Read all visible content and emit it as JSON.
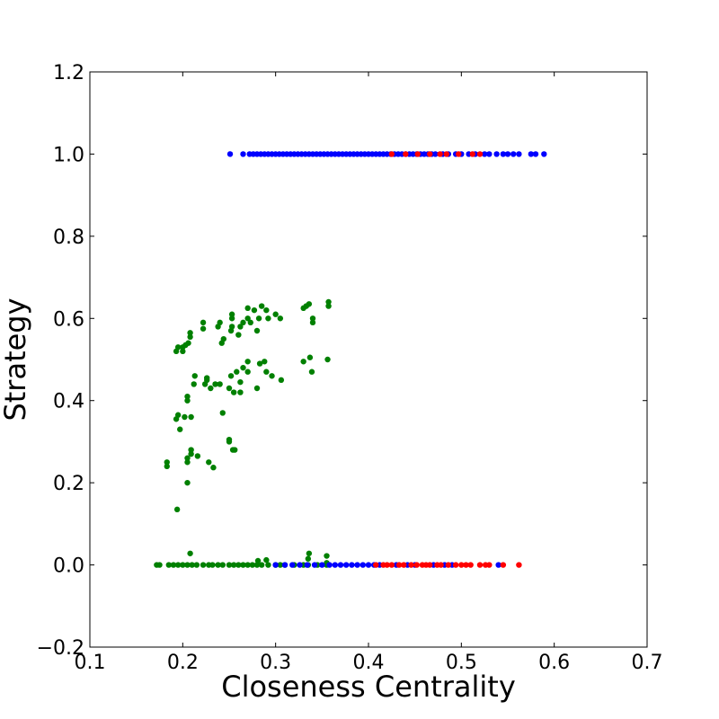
{
  "chart_data": {
    "type": "scatter",
    "title": "",
    "xlabel": "Closeness Centrality",
    "ylabel": "Strategy",
    "xlim": [
      0.1,
      0.7
    ],
    "ylim": [
      -0.2,
      1.2
    ],
    "xticks": [
      "0.1",
      "0.2",
      "0.3",
      "0.4",
      "0.5",
      "0.6",
      "0.7"
    ],
    "yticks": [
      "−0.2",
      "0.0",
      "0.2",
      "0.4",
      "0.6",
      "0.8",
      "1.0",
      "1.2"
    ],
    "xtick_values": [
      0.1,
      0.2,
      0.3,
      0.4,
      0.5,
      0.6,
      0.7
    ],
    "ytick_values": [
      -0.2,
      0.0,
      0.2,
      0.4,
      0.6,
      0.8,
      1.0,
      1.2
    ],
    "grid": false,
    "legend": "none",
    "series": [
      {
        "color": "#008000",
        "points": [
          [
            0.172,
            0
          ],
          [
            0.175,
            0
          ],
          [
            0.185,
            0
          ],
          [
            0.19,
            0
          ],
          [
            0.195,
            0
          ],
          [
            0.2,
            0
          ],
          [
            0.205,
            0
          ],
          [
            0.21,
            0
          ],
          [
            0.215,
            0
          ],
          [
            0.222,
            0
          ],
          [
            0.228,
            0
          ],
          [
            0.232,
            0
          ],
          [
            0.238,
            0
          ],
          [
            0.243,
            0
          ],
          [
            0.25,
            0
          ],
          [
            0.255,
            0
          ],
          [
            0.26,
            0
          ],
          [
            0.265,
            0
          ],
          [
            0.27,
            0
          ],
          [
            0.275,
            0
          ],
          [
            0.28,
            0
          ],
          [
            0.285,
            0
          ],
          [
            0.292,
            0
          ],
          [
            0.3,
            0
          ],
          [
            0.305,
            0
          ],
          [
            0.31,
            0
          ],
          [
            0.32,
            0
          ],
          [
            0.33,
            0
          ],
          [
            0.335,
            0
          ],
          [
            0.345,
            0
          ],
          [
            0.355,
            0
          ],
          [
            0.208,
            0.028
          ],
          [
            0.29,
            0.012
          ],
          [
            0.336,
            0.028
          ],
          [
            0.335,
            0.015
          ],
          [
            0.355,
            0.022
          ],
          [
            0.355,
            0.005
          ],
          [
            0.281,
            0.01
          ],
          [
            0.194,
            0.135
          ],
          [
            0.205,
            0.2
          ],
          [
            0.183,
            0.24
          ],
          [
            0.183,
            0.25
          ],
          [
            0.205,
            0.25
          ],
          [
            0.205,
            0.26
          ],
          [
            0.209,
            0.27
          ],
          [
            0.209,
            0.28
          ],
          [
            0.216,
            0.265
          ],
          [
            0.228,
            0.25
          ],
          [
            0.233,
            0.237
          ],
          [
            0.254,
            0.28
          ],
          [
            0.256,
            0.28
          ],
          [
            0.25,
            0.3
          ],
          [
            0.25,
            0.305
          ],
          [
            0.193,
            0.355
          ],
          [
            0.195,
            0.365
          ],
          [
            0.197,
            0.33
          ],
          [
            0.202,
            0.36
          ],
          [
            0.209,
            0.36
          ],
          [
            0.205,
            0.4
          ],
          [
            0.205,
            0.41
          ],
          [
            0.243,
            0.37
          ],
          [
            0.212,
            0.44
          ],
          [
            0.213,
            0.46
          ],
          [
            0.224,
            0.44
          ],
          [
            0.226,
            0.45
          ],
          [
            0.226,
            0.455
          ],
          [
            0.23,
            0.43
          ],
          [
            0.235,
            0.44
          ],
          [
            0.24,
            0.44
          ],
          [
            0.25,
            0.43
          ],
          [
            0.255,
            0.42
          ],
          [
            0.262,
            0.42
          ],
          [
            0.28,
            0.43
          ],
          [
            0.252,
            0.46
          ],
          [
            0.258,
            0.47
          ],
          [
            0.262,
            0.445
          ],
          [
            0.265,
            0.48
          ],
          [
            0.27,
            0.47
          ],
          [
            0.27,
            0.495
          ],
          [
            0.283,
            0.49
          ],
          [
            0.288,
            0.495
          ],
          [
            0.29,
            0.47
          ],
          [
            0.296,
            0.46
          ],
          [
            0.306,
            0.45
          ],
          [
            0.33,
            0.495
          ],
          [
            0.337,
            0.505
          ],
          [
            0.339,
            0.47
          ],
          [
            0.356,
            0.5
          ],
          [
            0.193,
            0.52
          ],
          [
            0.195,
            0.53
          ],
          [
            0.2,
            0.52
          ],
          [
            0.2,
            0.53
          ],
          [
            0.203,
            0.535
          ],
          [
            0.206,
            0.54
          ],
          [
            0.208,
            0.555
          ],
          [
            0.208,
            0.565
          ],
          [
            0.222,
            0.575
          ],
          [
            0.222,
            0.59
          ],
          [
            0.238,
            0.58
          ],
          [
            0.24,
            0.59
          ],
          [
            0.242,
            0.54
          ],
          [
            0.244,
            0.55
          ],
          [
            0.252,
            0.57
          ],
          [
            0.253,
            0.58
          ],
          [
            0.253,
            0.6
          ],
          [
            0.253,
            0.61
          ],
          [
            0.26,
            0.56
          ],
          [
            0.262,
            0.58
          ],
          [
            0.265,
            0.59
          ],
          [
            0.27,
            0.6
          ],
          [
            0.27,
            0.625
          ],
          [
            0.273,
            0.59
          ],
          [
            0.277,
            0.62
          ],
          [
            0.28,
            0.57
          ],
          [
            0.282,
            0.6
          ],
          [
            0.285,
            0.63
          ],
          [
            0.29,
            0.62
          ],
          [
            0.292,
            0.6
          ],
          [
            0.3,
            0.61
          ],
          [
            0.305,
            0.6
          ],
          [
            0.33,
            0.625
          ],
          [
            0.333,
            0.63
          ],
          [
            0.336,
            0.635
          ],
          [
            0.34,
            0.59
          ],
          [
            0.34,
            0.6
          ],
          [
            0.357,
            0.63
          ],
          [
            0.357,
            0.64
          ]
        ]
      },
      {
        "color": "#0000ff",
        "points": [
          [
            0.251,
            1
          ],
          [
            0.265,
            1
          ],
          [
            0.272,
            1
          ],
          [
            0.276,
            1
          ],
          [
            0.28,
            1
          ],
          [
            0.284,
            1
          ],
          [
            0.288,
            1
          ],
          [
            0.292,
            1
          ],
          [
            0.296,
            1
          ],
          [
            0.3,
            1
          ],
          [
            0.304,
            1
          ],
          [
            0.308,
            1
          ],
          [
            0.312,
            1
          ],
          [
            0.316,
            1
          ],
          [
            0.32,
            1
          ],
          [
            0.324,
            1
          ],
          [
            0.328,
            1
          ],
          [
            0.332,
            1
          ],
          [
            0.336,
            1
          ],
          [
            0.34,
            1
          ],
          [
            0.344,
            1
          ],
          [
            0.348,
            1
          ],
          [
            0.352,
            1
          ],
          [
            0.356,
            1
          ],
          [
            0.36,
            1
          ],
          [
            0.364,
            1
          ],
          [
            0.368,
            1
          ],
          [
            0.372,
            1
          ],
          [
            0.376,
            1
          ],
          [
            0.38,
            1
          ],
          [
            0.384,
            1
          ],
          [
            0.388,
            1
          ],
          [
            0.392,
            1
          ],
          [
            0.396,
            1
          ],
          [
            0.4,
            1
          ],
          [
            0.404,
            1
          ],
          [
            0.408,
            1
          ],
          [
            0.412,
            1
          ],
          [
            0.416,
            1
          ],
          [
            0.42,
            1
          ],
          [
            0.424,
            1
          ],
          [
            0.428,
            1
          ],
          [
            0.432,
            1
          ],
          [
            0.436,
            1
          ],
          [
            0.44,
            1
          ],
          [
            0.444,
            1
          ],
          [
            0.448,
            1
          ],
          [
            0.452,
            1
          ],
          [
            0.456,
            1
          ],
          [
            0.46,
            1
          ],
          [
            0.464,
            1
          ],
          [
            0.468,
            1
          ],
          [
            0.472,
            1
          ],
          [
            0.48,
            1
          ],
          [
            0.486,
            1
          ],
          [
            0.494,
            1
          ],
          [
            0.5,
            1
          ],
          [
            0.508,
            1
          ],
          [
            0.515,
            1
          ],
          [
            0.525,
            1
          ],
          [
            0.53,
            1
          ],
          [
            0.538,
            1
          ],
          [
            0.545,
            1
          ],
          [
            0.55,
            1
          ],
          [
            0.556,
            1
          ],
          [
            0.562,
            1
          ],
          [
            0.575,
            1
          ],
          [
            0.58,
            1
          ],
          [
            0.589,
            1
          ],
          [
            0.3,
            0
          ],
          [
            0.31,
            0
          ],
          [
            0.318,
            0
          ],
          [
            0.326,
            0
          ],
          [
            0.334,
            0
          ],
          [
            0.342,
            0
          ],
          [
            0.35,
            0
          ],
          [
            0.358,
            0
          ],
          [
            0.364,
            0
          ],
          [
            0.37,
            0
          ],
          [
            0.376,
            0
          ],
          [
            0.382,
            0
          ],
          [
            0.388,
            0
          ],
          [
            0.394,
            0
          ],
          [
            0.4,
            0
          ],
          [
            0.406,
            0
          ],
          [
            0.412,
            0
          ],
          [
            0.43,
            0
          ],
          [
            0.442,
            0
          ],
          [
            0.45,
            0
          ],
          [
            0.47,
            0
          ],
          [
            0.482,
            0
          ],
          [
            0.49,
            0
          ],
          [
            0.54,
            0
          ]
        ]
      },
      {
        "color": "#ff0000",
        "points": [
          [
            0.425,
            1
          ],
          [
            0.44,
            1
          ],
          [
            0.453,
            1
          ],
          [
            0.466,
            1
          ],
          [
            0.477,
            1
          ],
          [
            0.484,
            1
          ],
          [
            0.497,
            1
          ],
          [
            0.512,
            1
          ],
          [
            0.52,
            1
          ],
          [
            0.408,
            0
          ],
          [
            0.416,
            0
          ],
          [
            0.42,
            0
          ],
          [
            0.425,
            0
          ],
          [
            0.433,
            0
          ],
          [
            0.438,
            0
          ],
          [
            0.446,
            0
          ],
          [
            0.452,
            0
          ],
          [
            0.458,
            0
          ],
          [
            0.462,
            0
          ],
          [
            0.466,
            0
          ],
          [
            0.474,
            0
          ],
          [
            0.478,
            0
          ],
          [
            0.486,
            0
          ],
          [
            0.494,
            0
          ],
          [
            0.5,
            0
          ],
          [
            0.505,
            0
          ],
          [
            0.51,
            0
          ],
          [
            0.52,
            0
          ],
          [
            0.526,
            0
          ],
          [
            0.53,
            0
          ],
          [
            0.545,
            0
          ],
          [
            0.562,
            0
          ]
        ]
      }
    ]
  }
}
